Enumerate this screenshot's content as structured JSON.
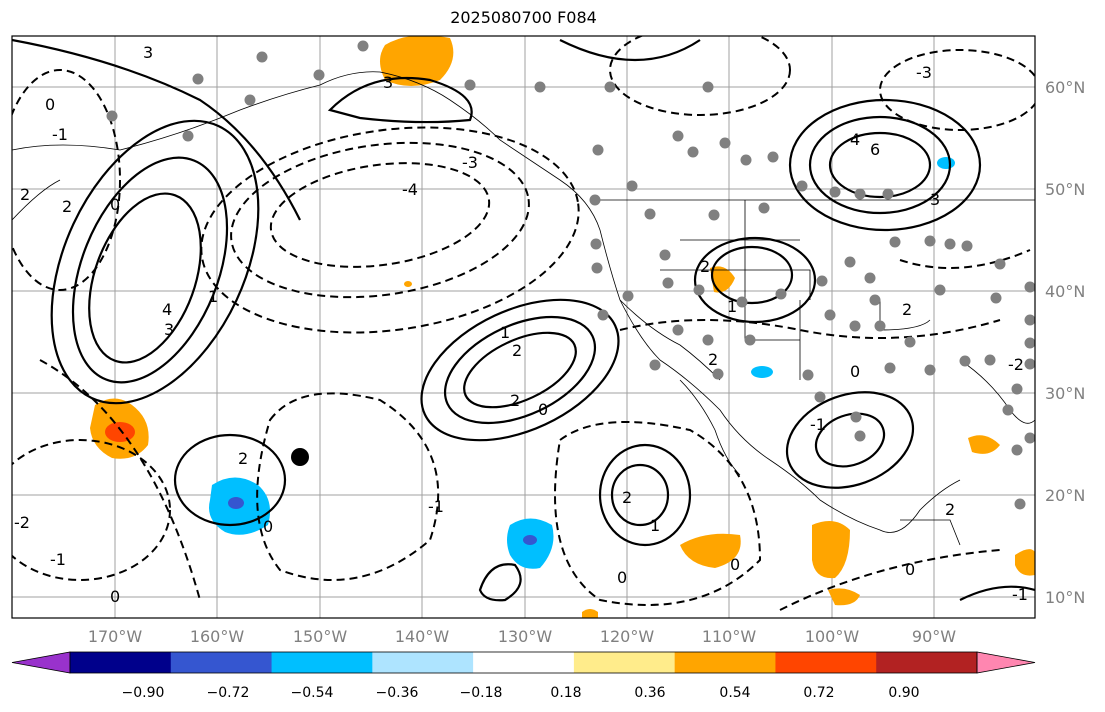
{
  "title": "2025080700 F084",
  "lon_labels": [
    "170°W",
    "160°W",
    "150°W",
    "140°W",
    "130°W",
    "120°W",
    "110°W",
    "100°W",
    "90°W"
  ],
  "lat_labels": [
    "60°N",
    "50°N",
    "40°N",
    "30°N",
    "20°N",
    "10°N"
  ],
  "colorbar": {
    "colors": [
      "#9932cc",
      "#00008b",
      "#3556d0",
      "#00bfff",
      "#aee4ff",
      "#ffffff",
      "#ffec8b",
      "#ffa500",
      "#ff4500",
      "#b22222",
      "#ff86b0"
    ],
    "ticks": [
      "−0.90",
      "−0.72",
      "−0.54",
      "−0.36",
      "−0.18",
      "0.18",
      "0.36",
      "0.54",
      "0.72",
      "0.90"
    ]
  },
  "contour_labels": [
    "3",
    "3",
    "0",
    "-1",
    "2",
    "2",
    "0",
    "-3",
    "-4",
    "1",
    "4",
    "3",
    "1",
    "2",
    "2",
    "0",
    "-1",
    "-2",
    "-1",
    "0",
    "2",
    "2",
    "1",
    "2",
    "6",
    "4",
    "-3",
    "3",
    "2",
    "-1",
    "0",
    "1",
    "0",
    "2",
    "-2",
    "0",
    "-1",
    "0",
    "0",
    "2"
  ]
}
